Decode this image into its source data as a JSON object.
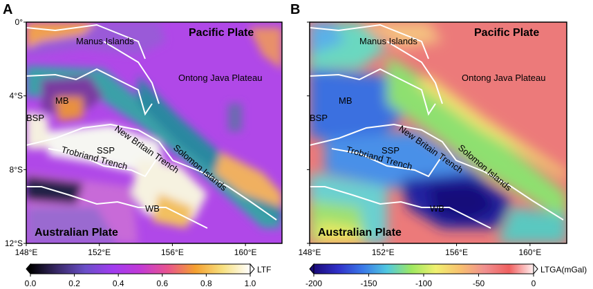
{
  "panels": [
    {
      "letter": "A",
      "colorbar": {
        "label": "LTF",
        "min": 0.0,
        "max": 1.0,
        "ticks": [
          "0.0",
          "0.2",
          "0.4",
          "0.6",
          "0.8",
          "1.0"
        ],
        "colors": [
          "#000000",
          "#3a2a6a",
          "#6a4fc8",
          "#a13cf0",
          "#c23ad6",
          "#e8548e",
          "#f4a030",
          "#f7e080",
          "#ffffff"
        ]
      }
    },
    {
      "letter": "B",
      "colorbar": {
        "label": "LTGA(mGal)",
        "min": -200,
        "max": 0,
        "ticks": [
          "-200",
          "-150",
          "-100",
          "-50",
          "0"
        ],
        "colors": [
          "#1a0a7a",
          "#3030c8",
          "#3a78e8",
          "#50c8e0",
          "#9ee860",
          "#f0f070",
          "#f8c070",
          "#f09090",
          "#f06060",
          "#fff0f0"
        ]
      }
    }
  ],
  "axes": {
    "lon_ticks": [
      "148°E",
      "152°E",
      "156°E",
      "160°E"
    ],
    "lat_ticks": [
      "0°",
      "4°S",
      "8°S",
      "12°S"
    ]
  },
  "labels": {
    "pacific_plate": "Pacific Plate",
    "australian_plate": "Australian Plate",
    "manus_islands": "Manus Islands",
    "ontong_java": "Ontong Java Plateau",
    "mb": "MB",
    "bsp": "BSP",
    "ssp": "SSP",
    "wb": "WB",
    "new_britain_trench": "New Britain Trench",
    "solomon_islands": "Solomon Islands",
    "trobriand_trench": "Trobriand Trench"
  },
  "map_colors": {
    "a_purple": "#a43cf0",
    "a_magenta": "#c93ad0",
    "a_teal": "#3fa0a8",
    "a_orange": "#e8903a",
    "a_white": "#f4f4f0",
    "b_red": "#ec7a7a",
    "b_blue": "#3b70e0",
    "b_cyan": "#5cc8e0",
    "b_green": "#8ee070",
    "b_yellow": "#f2e070",
    "b_deepblue": "#2020a0",
    "boundary": "#ffffff"
  }
}
